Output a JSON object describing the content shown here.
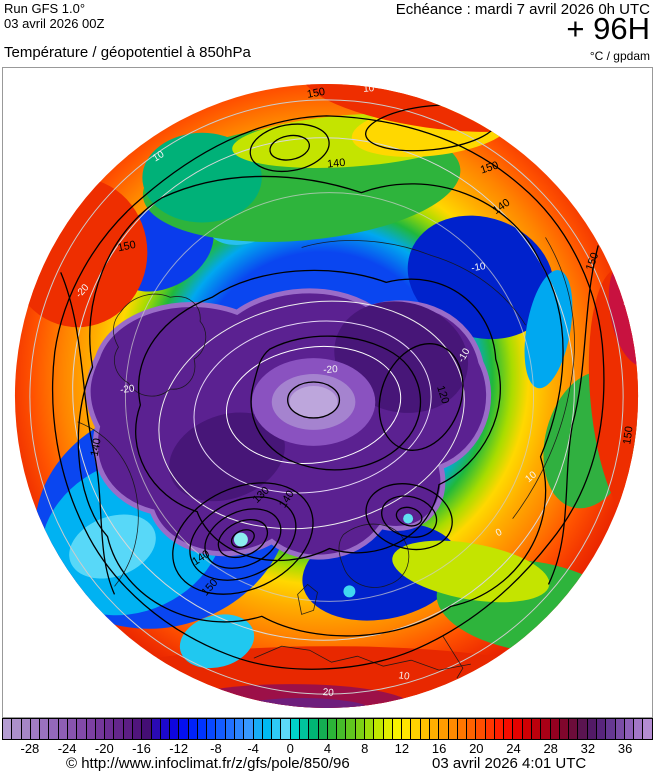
{
  "header": {
    "run_label": "Run GFS 1.0°",
    "run_date": "03 avril 2026 00Z",
    "echeance": "Echéance : mardi 7 avril 2026 0h UTC",
    "forecast_hour": "+ 96H",
    "variable": "Température / géopotentiel à 850hPa",
    "units": "°C / gpdam"
  },
  "map": {
    "projection": "polar",
    "geopotential_labels": {
      "l150": "150",
      "l140": "140",
      "l130": "130",
      "l120": "120"
    },
    "temperature_labels": {
      "t20": "20",
      "t10": "10",
      "t0": "0",
      "tm10": "-10",
      "tm20": "-20"
    }
  },
  "colorbar": {
    "unit": "°C",
    "min": -31,
    "max": 39,
    "tick_labels": [
      "-28",
      "-24",
      "-20",
      "-16",
      "-12",
      "-8",
      "-4",
      "0",
      "4",
      "8",
      "12",
      "16",
      "20",
      "24",
      "28",
      "32",
      "36"
    ],
    "colors": [
      "#b49cd2",
      "#ac90ca",
      "#a686c6",
      "#a07cc2",
      "#9a72be",
      "#9468ba",
      "#8e5eb4",
      "#8854ae",
      "#824aa8",
      "#7c40a2",
      "#74379b",
      "#6c2e94",
      "#64268c",
      "#5c1e84",
      "#50157c",
      "#440e74",
      "#2a0ab4",
      "#1c08cc",
      "#0e06e0",
      "#0410f0",
      "#0022fa",
      "#0034ff",
      "#0948ff",
      "#145cff",
      "#2070ff",
      "#2c84ff",
      "#3898ff",
      "#18acf6",
      "#00baf2",
      "#2ecaf6",
      "#5cdaf8",
      "#00d2c8",
      "#00c49c",
      "#00b674",
      "#14ae52",
      "#2cb438",
      "#46bc2a",
      "#60c61e",
      "#7cd014",
      "#9cdc0a",
      "#c0e800",
      "#e0ee00",
      "#f8f200",
      "#ffe400",
      "#ffd200",
      "#ffc000",
      "#ffae00",
      "#ff9c00",
      "#ff8a00",
      "#ff7600",
      "#ff6200",
      "#ff4e00",
      "#ff3600",
      "#ff1e00",
      "#f60c00",
      "#e40200",
      "#d00004",
      "#bc000c",
      "#a80016",
      "#940020",
      "#80062c",
      "#6c0c3a",
      "#5a1450",
      "#521a66",
      "#58257c",
      "#663892",
      "#7a4ca6",
      "#8e60b8",
      "#a276c6",
      "#b48cd2"
    ]
  },
  "footer": {
    "copyright": "© http://www.infoclimat.fr/z/gfs/pole/850/96",
    "generated": "03 avril 2026  4:01 UTC"
  }
}
